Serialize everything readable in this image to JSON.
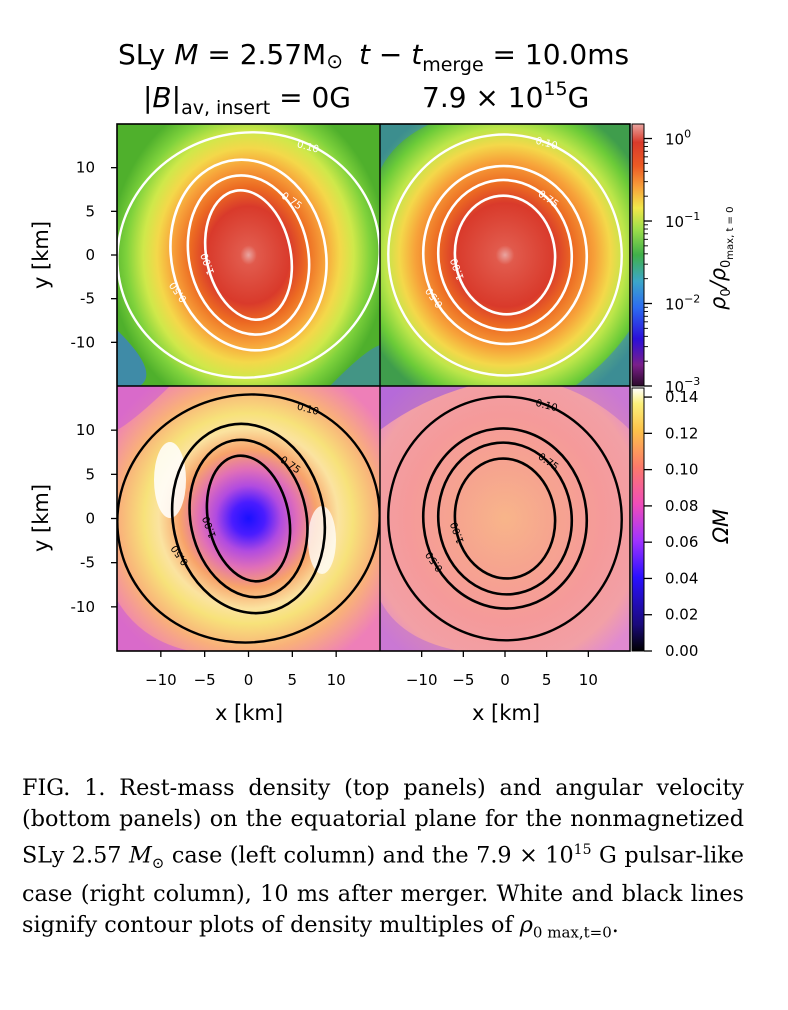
{
  "title": {
    "line1": {
      "prefix": "SLy ",
      "mass_sym": "M",
      "mass_rest": " = 2.57M",
      "sun": "⊙",
      "time_t": "t − t",
      "merge_sub": "merge",
      "time_rest": " = 10.0ms"
    },
    "line2": {
      "babs": "|B|",
      "b_sub": "av, insert",
      "left_rest": " = 0G",
      "right_main": "7.9 × 10",
      "right_exp": "15",
      "right_unit": "G"
    }
  },
  "colors": {
    "white_contour": "#ffffff",
    "black_contour": "#000000",
    "density_core": "#d93a2b",
    "omega_bg": "#f59a9a"
  },
  "chart_data": [
    {
      "type": "heatmap",
      "panel": "top-left",
      "quantity": "rest-mass density",
      "ylabel": "y [km]",
      "x_range": [
        -15,
        15
      ],
      "y_range": [
        -15,
        15
      ],
      "yticks": [
        "10",
        "5",
        "0",
        "-5",
        "-10"
      ],
      "contours": [
        {
          "level": 1.0,
          "label": "1.00",
          "rx": 4.8,
          "ry": 7.5
        },
        {
          "level": 0.75,
          "label": "0.75",
          "rx": 6.8,
          "ry": 9.2
        },
        {
          "level": 0.5,
          "label": "0.50",
          "rx": 8.8,
          "ry": 11.0
        },
        {
          "level": 0.1,
          "label": "0.10",
          "rx": 15.0,
          "ry": 14.0
        }
      ]
    },
    {
      "type": "heatmap",
      "panel": "top-right",
      "quantity": "rest-mass density",
      "x_range": [
        -15,
        15
      ],
      "y_range": [
        -15,
        15
      ],
      "contours": [
        {
          "level": 1.0,
          "label": "1.00",
          "rx": 6.0,
          "ry": 6.8
        },
        {
          "level": 0.75,
          "label": "0.75",
          "rx": 8.0,
          "ry": 8.6
        },
        {
          "level": 0.5,
          "label": "0.50",
          "rx": 9.8,
          "ry": 10.2
        },
        {
          "level": 0.1,
          "label": "0.10",
          "rx": 14.0,
          "ry": 13.8
        }
      ]
    },
    {
      "type": "heatmap",
      "panel": "bottom-left",
      "quantity": "angular velocity",
      "ylabel": "y [km]",
      "xlabel": "x [km]",
      "x_range": [
        -15,
        15
      ],
      "y_range": [
        -15,
        15
      ],
      "yticks": [
        "10",
        "5",
        "0",
        "-5",
        "-10"
      ],
      "xticks": [
        "−10",
        "−5",
        "0",
        "5",
        "10"
      ],
      "contours": [
        {
          "level": 1.0,
          "label": "1.00",
          "rx": 4.6,
          "ry": 7.2
        },
        {
          "level": 0.75,
          "label": "0.75",
          "rx": 6.6,
          "ry": 9.0
        },
        {
          "level": 0.5,
          "label": "0.50",
          "rx": 8.6,
          "ry": 10.8
        },
        {
          "level": 0.1,
          "label": "0.10",
          "rx": 15.0,
          "ry": 14.0
        }
      ]
    },
    {
      "type": "heatmap",
      "panel": "bottom-right",
      "quantity": "angular velocity",
      "xlabel": "x [km]",
      "x_range": [
        -15,
        15
      ],
      "y_range": [
        -15,
        15
      ],
      "xticks": [
        "−10",
        "−5",
        "0",
        "5",
        "10"
      ],
      "contours": [
        {
          "level": 1.0,
          "label": "1.00",
          "rx": 6.0,
          "ry": 6.8
        },
        {
          "level": 0.75,
          "label": "0.75",
          "rx": 8.0,
          "ry": 8.6
        },
        {
          "level": 0.5,
          "label": "0.50",
          "rx": 9.8,
          "ry": 10.2
        },
        {
          "level": 0.1,
          "label": "0.10",
          "rx": 14.0,
          "ry": 13.8
        }
      ]
    }
  ],
  "density_colorbar": {
    "scale": "log",
    "range": [
      0.001,
      1.5
    ],
    "ticks": [
      {
        "base": "10",
        "exp": "0",
        "value": 1
      },
      {
        "base": "10",
        "exp": "−1",
        "value": 0.1
      },
      {
        "base": "10",
        "exp": "−2",
        "value": 0.01
      },
      {
        "base": "10",
        "exp": "−3",
        "value": 0.001
      }
    ],
    "label_main": "ρ",
    "label_sub0": "0",
    "label_slash": "/ρ",
    "label_sub1": "0",
    "label_subsub": "max, t = 0"
  },
  "omega_colorbar": {
    "scale": "linear",
    "range": [
      0,
      0.145
    ],
    "ticks": [
      "0.14",
      "0.12",
      "0.10",
      "0.08",
      "0.06",
      "0.04",
      "0.02",
      "0.00"
    ],
    "tick_values": [
      0.14,
      0.12,
      0.1,
      0.08,
      0.06,
      0.04,
      0.02,
      0.0
    ],
    "label": "ΩM"
  },
  "caption": {
    "p1": "FIG. 1. Rest-mass density (top panels) and angular velocity (bottom panels) on the equatorial plane for the nonmagnetized SLy 2.57 ",
    "m": "M",
    "sun": "⊙",
    "p2": " case (left column) and the 7.9 × 10",
    "exp": "15",
    "p3": " G pulsar-like case (right column), 10 ms after merger. White and black lines signify contour plots of density multiples of ",
    "rho": "ρ",
    "rho_sub": "0 max,t=0",
    "end": "."
  }
}
